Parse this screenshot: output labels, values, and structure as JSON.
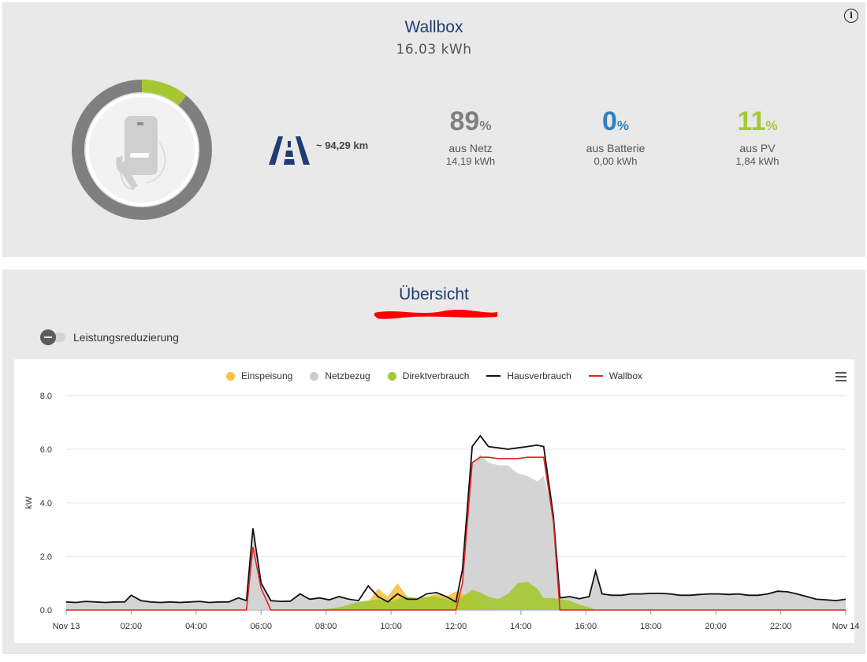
{
  "wallbox": {
    "title": "Wallbox",
    "energy": "16.03 kWh",
    "range": "~ 94,29 km",
    "ring": {
      "green_fraction": 0.11
    },
    "stats": [
      {
        "value": "89",
        "unit": "%",
        "label": "aus Netz",
        "energy": "14,19 kWh",
        "color": "#808080"
      },
      {
        "value": "0",
        "unit": "%",
        "label": "aus Batterie",
        "energy": "0,00 kWh",
        "color": "#2e80c0"
      },
      {
        "value": "11",
        "unit": "%",
        "label": "aus PV",
        "energy": "1,84 kWh",
        "color": "#a5c832"
      }
    ]
  },
  "overview": {
    "title": "Übersicht",
    "toggle_label": "Leistungsreduzierung"
  },
  "colors": {
    "title": "#1f3d73",
    "ring_grey": "#7f7f7f",
    "ring_green": "#a5c832",
    "road_icon": "#1f3d73"
  },
  "chart_data": {
    "type": "area",
    "ylabel": "kW",
    "ylim": [
      0,
      8
    ],
    "yticks": [
      "0.0",
      "2.0",
      "4.0",
      "6.0",
      "8.0"
    ],
    "xticks": [
      "Nov 13",
      "02:00",
      "04:00",
      "06:00",
      "08:00",
      "10:00",
      "12:00",
      "14:00",
      "16:00",
      "18:00",
      "20:00",
      "22:00",
      "Nov 14"
    ],
    "x_hours": [
      0,
      0.3,
      0.6,
      0.9,
      1.2,
      1.5,
      1.8,
      2.0,
      2.3,
      2.6,
      2.9,
      3.2,
      3.5,
      3.8,
      4.1,
      4.4,
      4.7,
      5.0,
      5.3,
      5.55,
      5.75,
      6.0,
      6.3,
      6.6,
      6.9,
      7.2,
      7.5,
      7.8,
      8.1,
      8.4,
      8.7,
      9.0,
      9.3,
      9.6,
      9.9,
      10.2,
      10.5,
      10.8,
      11.1,
      11.4,
      11.7,
      12.0,
      12.2,
      12.5,
      12.75,
      13.0,
      13.3,
      13.6,
      13.9,
      14.2,
      14.5,
      14.7,
      15.0,
      15.2,
      15.5,
      15.8,
      16.1,
      16.3,
      16.5,
      16.8,
      17.1,
      17.4,
      17.7,
      18.0,
      18.3,
      18.6,
      18.9,
      19.2,
      19.5,
      19.8,
      20.1,
      20.4,
      20.7,
      21.0,
      21.3,
      21.6,
      21.9,
      22.2,
      22.5,
      22.8,
      23.1,
      23.4,
      23.7,
      24.0
    ],
    "series": [
      {
        "name": "Einspeisung",
        "color": "#f5c242",
        "fill": true,
        "values": [
          0,
          0,
          0,
          0,
          0,
          0,
          0,
          0,
          0,
          0,
          0,
          0,
          0,
          0,
          0,
          0,
          0,
          0,
          0,
          0,
          0,
          0,
          0,
          0,
          0,
          0,
          0,
          0,
          0,
          0,
          0,
          0.05,
          0.3,
          0.8,
          0.5,
          1.0,
          0.5,
          0.4,
          0.5,
          0.6,
          0.5,
          0.7,
          0.6,
          0.5,
          0.2,
          0.1,
          0,
          0,
          0,
          0,
          0,
          0,
          0,
          0,
          0,
          0,
          0,
          0,
          0,
          0,
          0,
          0,
          0,
          0,
          0,
          0,
          0,
          0,
          0,
          0,
          0,
          0,
          0,
          0,
          0,
          0,
          0,
          0,
          0,
          0,
          0,
          0,
          0,
          0
        ]
      },
      {
        "name": "Netzbezug",
        "color": "#cccccc",
        "fill": true,
        "values": [
          0.3,
          0.28,
          0.32,
          0.3,
          0.28,
          0.3,
          0.3,
          0.55,
          0.35,
          0.3,
          0.28,
          0.3,
          0.28,
          0.3,
          0.32,
          0.28,
          0.3,
          0.3,
          0.45,
          0.35,
          3.05,
          1.0,
          0.35,
          0.32,
          0.33,
          0.6,
          0.4,
          0.45,
          0.38,
          0.5,
          0.35,
          0.3,
          0.35,
          0.3,
          0.2,
          0.1,
          0.2,
          0.15,
          0.1,
          0.15,
          0.2,
          0.1,
          1.0,
          5.5,
          5.8,
          5.5,
          5.4,
          5.4,
          5.1,
          5.0,
          4.8,
          5.0,
          3.5,
          0.45,
          0.5,
          0.42,
          0.5,
          1.45,
          0.6,
          0.55,
          0.55,
          0.6,
          0.6,
          0.62,
          0.62,
          0.6,
          0.55,
          0.55,
          0.58,
          0.6,
          0.6,
          0.58,
          0.6,
          0.55,
          0.55,
          0.6,
          0.7,
          0.68,
          0.6,
          0.5,
          0.4,
          0.38,
          0.35,
          0.4
        ]
      },
      {
        "name": "Direktverbrauch",
        "color": "#a5c832",
        "fill": true,
        "values": [
          0,
          0,
          0,
          0,
          0,
          0,
          0,
          0,
          0,
          0,
          0,
          0,
          0,
          0,
          0,
          0,
          0,
          0,
          0,
          0,
          0,
          0,
          0,
          0,
          0,
          0,
          0,
          0,
          0.05,
          0.1,
          0.2,
          0.3,
          0.35,
          0.4,
          0.3,
          0.4,
          0.5,
          0.45,
          0.5,
          0.5,
          0.4,
          0.3,
          0.5,
          0.75,
          0.65,
          0.5,
          0.4,
          0.6,
          1.0,
          1.05,
          0.8,
          0.45,
          0.45,
          0.4,
          0.35,
          0.2,
          0.1,
          0,
          0,
          0,
          0,
          0,
          0,
          0,
          0,
          0,
          0,
          0,
          0,
          0,
          0,
          0,
          0,
          0,
          0,
          0,
          0,
          0,
          0,
          0,
          0,
          0,
          0,
          0
        ]
      },
      {
        "name": "Hausverbrauch",
        "color": "#111111",
        "fill": false,
        "values": [
          0.3,
          0.28,
          0.32,
          0.3,
          0.28,
          0.3,
          0.3,
          0.55,
          0.35,
          0.3,
          0.28,
          0.3,
          0.28,
          0.3,
          0.32,
          0.28,
          0.3,
          0.3,
          0.45,
          0.35,
          3.05,
          1.0,
          0.35,
          0.32,
          0.33,
          0.6,
          0.4,
          0.45,
          0.38,
          0.5,
          0.4,
          0.35,
          0.9,
          0.5,
          0.3,
          0.6,
          0.4,
          0.4,
          0.6,
          0.65,
          0.5,
          0.3,
          1.5,
          6.1,
          6.5,
          6.1,
          6.05,
          6.0,
          6.05,
          6.1,
          6.15,
          6.1,
          3.5,
          0.45,
          0.5,
          0.42,
          0.5,
          1.45,
          0.6,
          0.55,
          0.55,
          0.6,
          0.6,
          0.62,
          0.62,
          0.6,
          0.55,
          0.55,
          0.58,
          0.6,
          0.6,
          0.58,
          0.6,
          0.55,
          0.55,
          0.6,
          0.7,
          0.68,
          0.6,
          0.5,
          0.4,
          0.38,
          0.35,
          0.4
        ]
      },
      {
        "name": "Wallbox",
        "color": "#e02424",
        "fill": false,
        "values": [
          0,
          0,
          0,
          0,
          0,
          0,
          0,
          0,
          0,
          0,
          0,
          0,
          0,
          0,
          0,
          0,
          0,
          0,
          0,
          0,
          2.35,
          0.8,
          0,
          0,
          0,
          0,
          0,
          0,
          0,
          0,
          0,
          0,
          0,
          0,
          0,
          0,
          0,
          0,
          0,
          0,
          0,
          0,
          1.0,
          5.5,
          5.7,
          5.7,
          5.65,
          5.65,
          5.65,
          5.7,
          5.7,
          5.7,
          3.3,
          0,
          0,
          0,
          0,
          0,
          0,
          0,
          0,
          0,
          0,
          0,
          0,
          0,
          0,
          0,
          0,
          0,
          0,
          0,
          0,
          0,
          0,
          0,
          0,
          0,
          0,
          0,
          0,
          0,
          0,
          0
        ]
      }
    ],
    "legend_position": "top-center",
    "grid": true
  }
}
